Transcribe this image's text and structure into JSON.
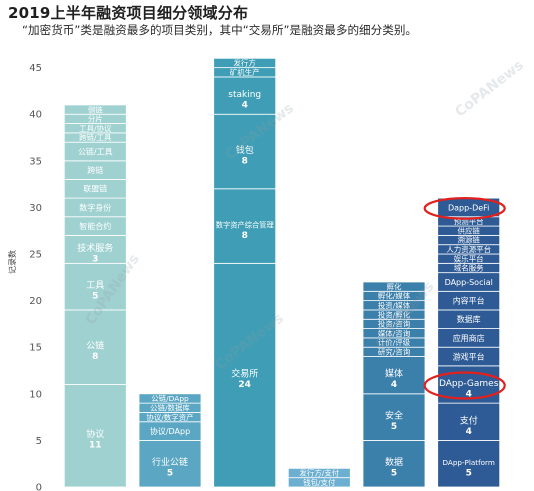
{
  "watermark": "CoPANews",
  "colors": {
    "bars": [
      "#a0d1d1",
      "#5aa6c3",
      "#3f9eb6",
      "#6cafd1",
      "#3b7fab",
      "#2e5b95"
    ],
    "segment_text": "#ffffff",
    "segment_border": "#ffffff",
    "axis_text": "#555555",
    "highlight": "#e3201d",
    "watermark": "#8f9ca6"
  },
  "chart_data": {
    "type": "bar",
    "stacked": true,
    "title": "2019上半年融资项目细分领域分布",
    "subtitle": "“加密货币”类是融资最多的项目类别，其中“交易所”是融资最多的细分类别。",
    "xlabel": "",
    "ylabel": "记录数",
    "ylim": [
      0,
      47
    ],
    "yticks": [
      0,
      5,
      10,
      15,
      20,
      25,
      30,
      35,
      40,
      45
    ],
    "grid": false,
    "legend": "none",
    "bars": [
      {
        "segments": [
          {
            "label": "协议",
            "value": 11,
            "show_value": true
          },
          {
            "label": "公链",
            "value": 8,
            "show_value": true
          },
          {
            "label": "工具",
            "value": 5,
            "show_value": true
          },
          {
            "label": "技术服务",
            "value": 3,
            "show_value": true
          },
          {
            "label": "智能合约",
            "value": 2
          },
          {
            "label": "数字身份",
            "value": 2
          },
          {
            "label": "联盟链",
            "value": 2
          },
          {
            "label": "跨链",
            "value": 2
          },
          {
            "label": "公链/工具",
            "value": 2
          },
          {
            "label": "跨链/工具",
            "value": 1
          },
          {
            "label": "工具/协议",
            "value": 1
          },
          {
            "label": "分片",
            "value": 1
          },
          {
            "label": "侧链",
            "value": 1
          }
        ]
      },
      {
        "segments": [
          {
            "label": "行业公链",
            "value": 5,
            "show_value": true
          },
          {
            "label": "协议/DApp",
            "value": 2
          },
          {
            "label": "协议/数字资产",
            "value": 1
          },
          {
            "label": "公链/数据库",
            "value": 1
          },
          {
            "label": "公链/DApp",
            "value": 1
          }
        ]
      },
      {
        "segments": [
          {
            "label": "交易所",
            "value": 24,
            "show_value": true
          },
          {
            "label": "数字资产综合管理",
            "value": 8,
            "show_value": true
          },
          {
            "label": "钱包",
            "value": 8,
            "show_value": true
          },
          {
            "label": "staking",
            "value": 4,
            "show_value": true
          },
          {
            "label": "矿机生产",
            "value": 1
          },
          {
            "label": "发行方",
            "value": 1
          }
        ]
      },
      {
        "segments": [
          {
            "label": "钱包/支付",
            "value": 1
          },
          {
            "label": "发行方/支付",
            "value": 1
          }
        ]
      },
      {
        "segments": [
          {
            "label": "数据",
            "value": 5,
            "show_value": true
          },
          {
            "label": "安全",
            "value": 5,
            "show_value": true
          },
          {
            "label": "媒体",
            "value": 4,
            "show_value": true
          },
          {
            "label": "研究/咨询",
            "value": 1
          },
          {
            "label": "计价/评级",
            "value": 1
          },
          {
            "label": "媒体/咨询",
            "value": 1
          },
          {
            "label": "投资/咨询",
            "value": 1
          },
          {
            "label": "投资/孵化",
            "value": 1
          },
          {
            "label": "投资/媒体",
            "value": 1
          },
          {
            "label": "孵化/媒体",
            "value": 1
          },
          {
            "label": "孵化",
            "value": 1
          }
        ]
      },
      {
        "segments": [
          {
            "label": "DApp-Platform",
            "value": 5,
            "show_value": true
          },
          {
            "label": "支付",
            "value": 4,
            "show_value": true
          },
          {
            "label": "DApp-Games",
            "value": 4,
            "show_value": true,
            "highlighted": true
          },
          {
            "label": "游戏平台",
            "value": 2
          },
          {
            "label": "应用商店",
            "value": 2
          },
          {
            "label": "数据库",
            "value": 2
          },
          {
            "label": "内容平台",
            "value": 2
          },
          {
            "label": "DApp-Social",
            "value": 2
          },
          {
            "label": "域名服务",
            "value": 1
          },
          {
            "label": "娱乐平台",
            "value": 1
          },
          {
            "label": "人力资源平台",
            "value": 1
          },
          {
            "label": "溯源链",
            "value": 1
          },
          {
            "label": "供应链",
            "value": 1
          },
          {
            "label": "预测平台",
            "value": 1
          },
          {
            "label": "Dapp-DeFi",
            "value": 2,
            "highlighted": true
          }
        ]
      }
    ]
  }
}
